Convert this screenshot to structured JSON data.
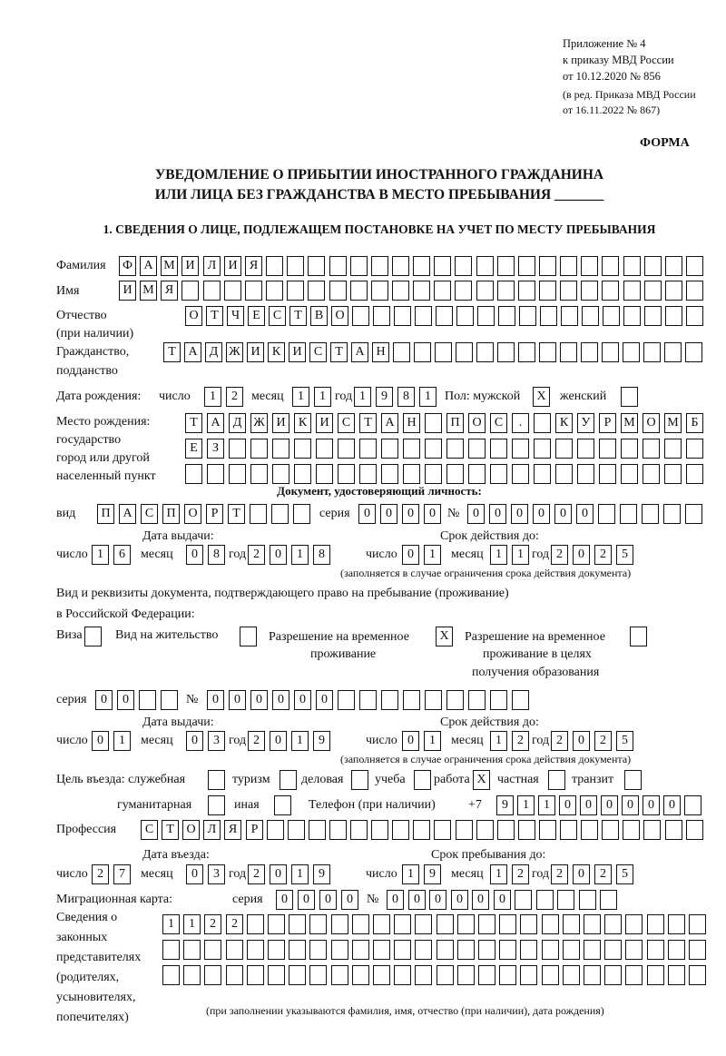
{
  "header": {
    "appendix": "Приложение № 4",
    "order": "к приказу МВД России",
    "order_date": "от 10.12.2020 № 856",
    "revision": "(в ред. Приказа МВД России",
    "revision_date": "от 16.11.2022 № 867)",
    "form_label": "ФОРМА",
    "title_line1": "УВЕДОМЛЕНИЕ О ПРИБЫТИИ ИНОСТРАННОГО ГРАЖДАНИНА",
    "title_line2": "ИЛИ ЛИЦА БЕЗ ГРАЖДАНСТВА В МЕСТО ПРЕБЫВАНИЯ _______"
  },
  "section1": {
    "title": "1. СВЕДЕНИЯ О ЛИЦЕ, ПОДЛЕЖАЩЕМ ПОСТАНОВКЕ НА УЧЕТ ПО МЕСТУ ПРЕБЫВАНИЯ"
  },
  "labels": {
    "surname": "Фамилия",
    "name": "Имя",
    "patronymic": "Отчество",
    "patronymic_note": "(при наличии)",
    "citizenship": "Гражданство,",
    "citizenship2": "подданство",
    "dob": "Дата рождения:",
    "day": "число",
    "month": "месяц",
    "year": "год",
    "sex_male": "Пол: мужской",
    "sex_female": "женский",
    "birthplace": "Место рождения:",
    "birthplace2": "государство",
    "birthplace3": "город или другой",
    "birthplace4": "населенный пункт",
    "id_doc_title": "Документ, удостоверяющий личность:",
    "doc_type": "вид",
    "series": "серия",
    "number": "№",
    "issue_date": "Дата выдачи:",
    "valid_until": "Срок действия до:",
    "validity_note": "(заполняется в случае ограничения срока действия документа)",
    "stay_doc": "Вид и реквизиты документа, подтверждающего право на пребывание (проживание)",
    "stay_doc2": "в Российской Федерации:",
    "visa": "Виза",
    "residence_permit": "Вид на жительство",
    "temp_residence": "Разрешение на временное",
    "temp_residence2": "проживание",
    "temp_residence_edu": "Разрешение на временное",
    "temp_residence_edu2": "проживание в целях",
    "temp_residence_edu3": "получения образования",
    "purpose": "Цель въезда: служебная",
    "tourism": "туризм",
    "business": "деловая",
    "study": "учеба",
    "work": "работа",
    "private": "частная",
    "transit": "транзит",
    "humanitarian": "гуманитарная",
    "other": "иная",
    "phone": "Телефон (при наличии)",
    "phone_prefix": "+7",
    "profession": "Профессия",
    "entry_date": "Дата въезда:",
    "stay_until": "Срок пребывания до:",
    "migration_card": "Миграционная карта:",
    "reps1": "Сведения о",
    "reps2": "законных",
    "reps3": "представителях",
    "reps4": "(родителях,",
    "reps5": "усыновителях,",
    "reps6": "попечителях)",
    "reps_note": "(при заполнении указываются фамилия, имя, отчество (при наличии), дата рождения)"
  },
  "values": {
    "surname": [
      "Ф",
      "А",
      "М",
      "И",
      "Л",
      "И",
      "Я"
    ],
    "name": [
      "И",
      "М",
      "Я"
    ],
    "patronymic": [
      "О",
      "Т",
      "Ч",
      "Е",
      "С",
      "Т",
      "В",
      "О"
    ],
    "citizenship": [
      "Т",
      "А",
      "Д",
      "Ж",
      "И",
      "К",
      "И",
      "С",
      "Т",
      "А",
      "Н"
    ],
    "birth_day": [
      "1",
      "2"
    ],
    "birth_month": [
      "1",
      "1"
    ],
    "birth_year": [
      "1",
      "9",
      "8",
      "1"
    ],
    "sex_male": [
      "X"
    ],
    "sex_female": [],
    "birthplace_line1": [
      "Т",
      "А",
      "Д",
      "Ж",
      "И",
      "К",
      "И",
      "С",
      "Т",
      "А",
      "Н",
      "",
      "П",
      "О",
      "С",
      ".",
      "",
      "К",
      "У",
      "Р",
      "М",
      "О",
      "М",
      "Б"
    ],
    "birthplace_line2": [
      "Е",
      "З"
    ],
    "birthplace_line3": [],
    "id_doc": {
      "type": [
        "П",
        "А",
        "С",
        "П",
        "О",
        "Р",
        "Т"
      ],
      "series": [
        "0",
        "0",
        "0",
        "0"
      ],
      "number": [
        "0",
        "0",
        "0",
        "0",
        "0",
        "0"
      ],
      "issue_day": [
        "1",
        "6"
      ],
      "issue_month": [
        "0",
        "8"
      ],
      "issue_year": [
        "2",
        "0",
        "1",
        "8"
      ],
      "valid_day": [
        "0",
        "1"
      ],
      "valid_month": [
        "1",
        "1"
      ],
      "valid_year": [
        "2",
        "0",
        "2",
        "5"
      ]
    },
    "stay_doc": {
      "visa": [],
      "residence_permit": [],
      "temp_residence": [
        "X"
      ],
      "temp_residence_education": [],
      "series": [
        "0",
        "0"
      ],
      "number": [
        "0",
        "0",
        "0",
        "0",
        "0",
        "0"
      ],
      "issue_day": [
        "0",
        "1"
      ],
      "issue_month": [
        "0",
        "3"
      ],
      "issue_year": [
        "2",
        "0",
        "1",
        "9"
      ],
      "valid_day": [
        "0",
        "1"
      ],
      "valid_month": [
        "1",
        "2"
      ],
      "valid_year": [
        "2",
        "0",
        "2",
        "5"
      ]
    },
    "purpose": {
      "official": [],
      "tourism": [],
      "business": [],
      "study": [],
      "work": [
        "X"
      ],
      "private": [],
      "transit": [],
      "humanitarian": [],
      "other": []
    },
    "phone": [
      "9",
      "1",
      "1",
      "0",
      "0",
      "0",
      "0",
      "0",
      "0"
    ],
    "profession": [
      "С",
      "Т",
      "О",
      "Л",
      "Я",
      "Р"
    ],
    "entry": {
      "day": [
        "2",
        "7"
      ],
      "month": [
        "0",
        "3"
      ],
      "year": [
        "2",
        "0",
        "1",
        "9"
      ]
    },
    "stay_until": {
      "day": [
        "1",
        "9"
      ],
      "month": [
        "1",
        "2"
      ],
      "year": [
        "2",
        "0",
        "2",
        "5"
      ]
    },
    "migration_card": {
      "series": [
        "0",
        "0",
        "0",
        "0"
      ],
      "number": [
        "0",
        "0",
        "0",
        "0",
        "0",
        "0"
      ]
    },
    "representatives": {
      "line1": [
        "1",
        "1",
        "2",
        "2"
      ],
      "line2": [],
      "line3": []
    }
  }
}
